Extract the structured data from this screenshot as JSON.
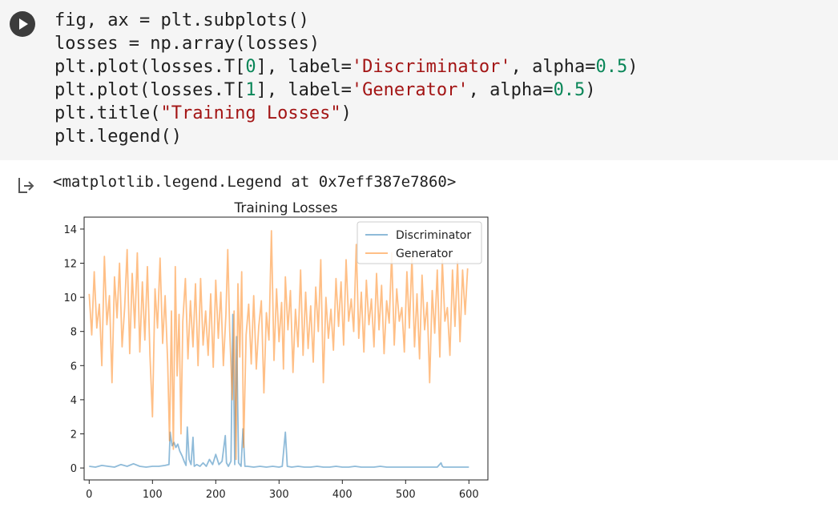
{
  "code_cell": {
    "lines": [
      [
        {
          "t": "fig, ax = plt.subplots()",
          "c": "plain"
        }
      ],
      [
        {
          "t": "losses = np.array(losses)",
          "c": "plain"
        }
      ],
      [
        {
          "t": "plt.plot(losses.T[",
          "c": "plain"
        },
        {
          "t": "0",
          "c": "num"
        },
        {
          "t": "], label=",
          "c": "plain"
        },
        {
          "t": "'Discriminator'",
          "c": "str"
        },
        {
          "t": ", alpha=",
          "c": "plain"
        },
        {
          "t": "0.5",
          "c": "num"
        },
        {
          "t": ")",
          "c": "plain"
        }
      ],
      [
        {
          "t": "plt.plot(losses.T[",
          "c": "plain"
        },
        {
          "t": "1",
          "c": "num"
        },
        {
          "t": "], label=",
          "c": "plain"
        },
        {
          "t": "'Generator'",
          "c": "str"
        },
        {
          "t": ", alpha=",
          "c": "plain"
        },
        {
          "t": "0.5",
          "c": "num"
        },
        {
          "t": ")",
          "c": "plain"
        }
      ],
      [
        {
          "t": "plt.title(",
          "c": "plain"
        },
        {
          "t": "\"Training Losses\"",
          "c": "str"
        },
        {
          "t": ")",
          "c": "plain"
        }
      ],
      [
        {
          "t": "plt.legend()",
          "c": "plain"
        }
      ]
    ],
    "run_icon": "play-icon"
  },
  "output": {
    "icon": "output-arrow-icon",
    "text": "<matplotlib.legend.Legend at 0x7eff387e7860>"
  },
  "chart_data": {
    "type": "line",
    "title": "Training Losses",
    "xlabel": "",
    "ylabel": "",
    "xlim": [
      -8,
      630
    ],
    "ylim": [
      -0.7,
      14.7
    ],
    "xticks": [
      0,
      100,
      200,
      300,
      400,
      500,
      600
    ],
    "yticks": [
      0,
      2,
      4,
      6,
      8,
      10,
      12,
      14
    ],
    "legend": "top-right",
    "grid": false,
    "series": [
      {
        "name": "Discriminator",
        "color": "#1f77b4",
        "alpha": 0.5,
        "x": [
          0,
          10,
          20,
          30,
          40,
          50,
          60,
          70,
          80,
          90,
          100,
          110,
          120,
          126,
          128,
          131,
          134,
          137,
          140,
          143,
          147,
          150,
          153,
          155,
          158,
          161,
          164,
          166,
          170,
          175,
          180,
          185,
          190,
          195,
          200,
          205,
          210,
          215,
          217,
          220,
          224,
          227,
          230,
          233,
          236,
          240,
          243,
          246,
          250,
          260,
          270,
          280,
          290,
          300,
          305,
          310,
          313,
          320,
          330,
          340,
          350,
          360,
          370,
          380,
          390,
          400,
          410,
          420,
          430,
          440,
          450,
          460,
          470,
          480,
          490,
          500,
          510,
          520,
          530,
          540,
          550,
          556,
          558,
          560,
          570,
          580,
          590,
          600
        ],
        "y": [
          0.1,
          0.05,
          0.15,
          0.1,
          0.05,
          0.2,
          0.1,
          0.25,
          0.1,
          0.05,
          0.1,
          0.1,
          0.15,
          0.2,
          2.1,
          1.3,
          1.5,
          1.2,
          1.4,
          1.0,
          0.7,
          0.4,
          0.15,
          2.4,
          0.5,
          0.2,
          1.8,
          0.1,
          0.2,
          0.1,
          0.3,
          0.1,
          0.5,
          0.2,
          0.8,
          0.2,
          0.4,
          1.9,
          0.3,
          0.1,
          0.4,
          9.0,
          0.2,
          7.7,
          0.3,
          0.1,
          2.3,
          0.1,
          0.1,
          0.05,
          0.1,
          0.05,
          0.1,
          0.05,
          0.1,
          2.1,
          0.1,
          0.05,
          0.1,
          0.05,
          0.05,
          0.1,
          0.05,
          0.05,
          0.1,
          0.05,
          0.05,
          0.1,
          0.05,
          0.05,
          0.05,
          0.1,
          0.05,
          0.05,
          0.05,
          0.05,
          0.05,
          0.05,
          0.05,
          0.05,
          0.05,
          0.3,
          0.1,
          0.05,
          0.05,
          0.05,
          0.05,
          0.05
        ]
      },
      {
        "name": "Generator",
        "color": "#ff7f0e",
        "alpha": 0.5,
        "x": [
          0,
          4,
          8,
          12,
          16,
          20,
          24,
          28,
          32,
          36,
          40,
          44,
          48,
          52,
          56,
          60,
          64,
          68,
          72,
          76,
          80,
          84,
          88,
          92,
          96,
          100,
          104,
          108,
          112,
          116,
          120,
          124,
          127,
          130,
          133,
          136,
          139,
          142,
          145,
          148,
          152,
          156,
          160,
          164,
          168,
          172,
          176,
          180,
          184,
          188,
          192,
          196,
          200,
          204,
          208,
          212,
          216,
          219,
          222,
          226,
          229,
          232,
          235,
          238,
          241,
          244,
          248,
          252,
          256,
          260,
          264,
          268,
          272,
          276,
          280,
          284,
          288,
          292,
          296,
          300,
          304,
          307,
          310,
          314,
          318,
          322,
          326,
          330,
          334,
          338,
          342,
          346,
          350,
          354,
          358,
          362,
          366,
          370,
          374,
          378,
          382,
          386,
          390,
          394,
          398,
          402,
          406,
          410,
          414,
          418,
          422,
          426,
          430,
          434,
          438,
          442,
          446,
          450,
          454,
          458,
          462,
          466,
          470,
          474,
          478,
          482,
          486,
          490,
          494,
          498,
          502,
          506,
          510,
          514,
          518,
          522,
          526,
          530,
          534,
          538,
          542,
          546,
          550,
          554,
          558,
          562,
          566,
          570,
          574,
          578,
          582,
          586,
          590,
          594,
          598
        ],
        "y": [
          10.2,
          7.8,
          11.5,
          8.2,
          9.6,
          6.0,
          12.4,
          8.4,
          10.1,
          5.0,
          11.2,
          8.8,
          12.0,
          7.1,
          9.4,
          12.8,
          6.7,
          11.4,
          8.2,
          12.6,
          6.8,
          10.9,
          7.5,
          11.8,
          6.6,
          3.0,
          10.5,
          8.2,
          12.3,
          7.3,
          10.1,
          6.2,
          1.6,
          9.2,
          1.1,
          11.8,
          5.4,
          9.0,
          2.0,
          8.6,
          11.1,
          6.4,
          9.8,
          7.1,
          10.8,
          6.0,
          11.1,
          7.2,
          9.2,
          6.6,
          10.2,
          5.9,
          11.0,
          7.6,
          10.3,
          6.0,
          9.0,
          12.8,
          8.1,
          4.0,
          9.2,
          0.5,
          10.8,
          6.5,
          11.5,
          1.2,
          7.8,
          9.6,
          6.1,
          10.1,
          5.8,
          8.3,
          9.8,
          4.4,
          9.1,
          7.5,
          13.9,
          6.3,
          10.5,
          7.4,
          9.7,
          5.8,
          11.2,
          8.1,
          10.4,
          5.6,
          9.3,
          7.1,
          11.6,
          6.6,
          10.3,
          7.0,
          9.5,
          6.2,
          10.6,
          8.0,
          12.2,
          5.0,
          10.0,
          7.6,
          9.3,
          6.9,
          11.1,
          8.3,
          10.9,
          7.2,
          12.2,
          8.6,
          9.9,
          8.0,
          13.1,
          7.6,
          10.3,
          6.8,
          11.0,
          8.4,
          9.9,
          7.1,
          11.4,
          8.1,
          10.7,
          6.7,
          9.8,
          8.5,
          12.6,
          7.2,
          10.5,
          8.6,
          9.4,
          6.8,
          11.5,
          8.2,
          12.4,
          7.1,
          10.2,
          6.4,
          11.3,
          8.1,
          9.7,
          5.0,
          10.4,
          7.9,
          11.6,
          6.5,
          12.2,
          8.6,
          9.4,
          6.6,
          11.6,
          8.3,
          12.1,
          7.4,
          11.6,
          9.0,
          11.7
        ]
      }
    ]
  }
}
